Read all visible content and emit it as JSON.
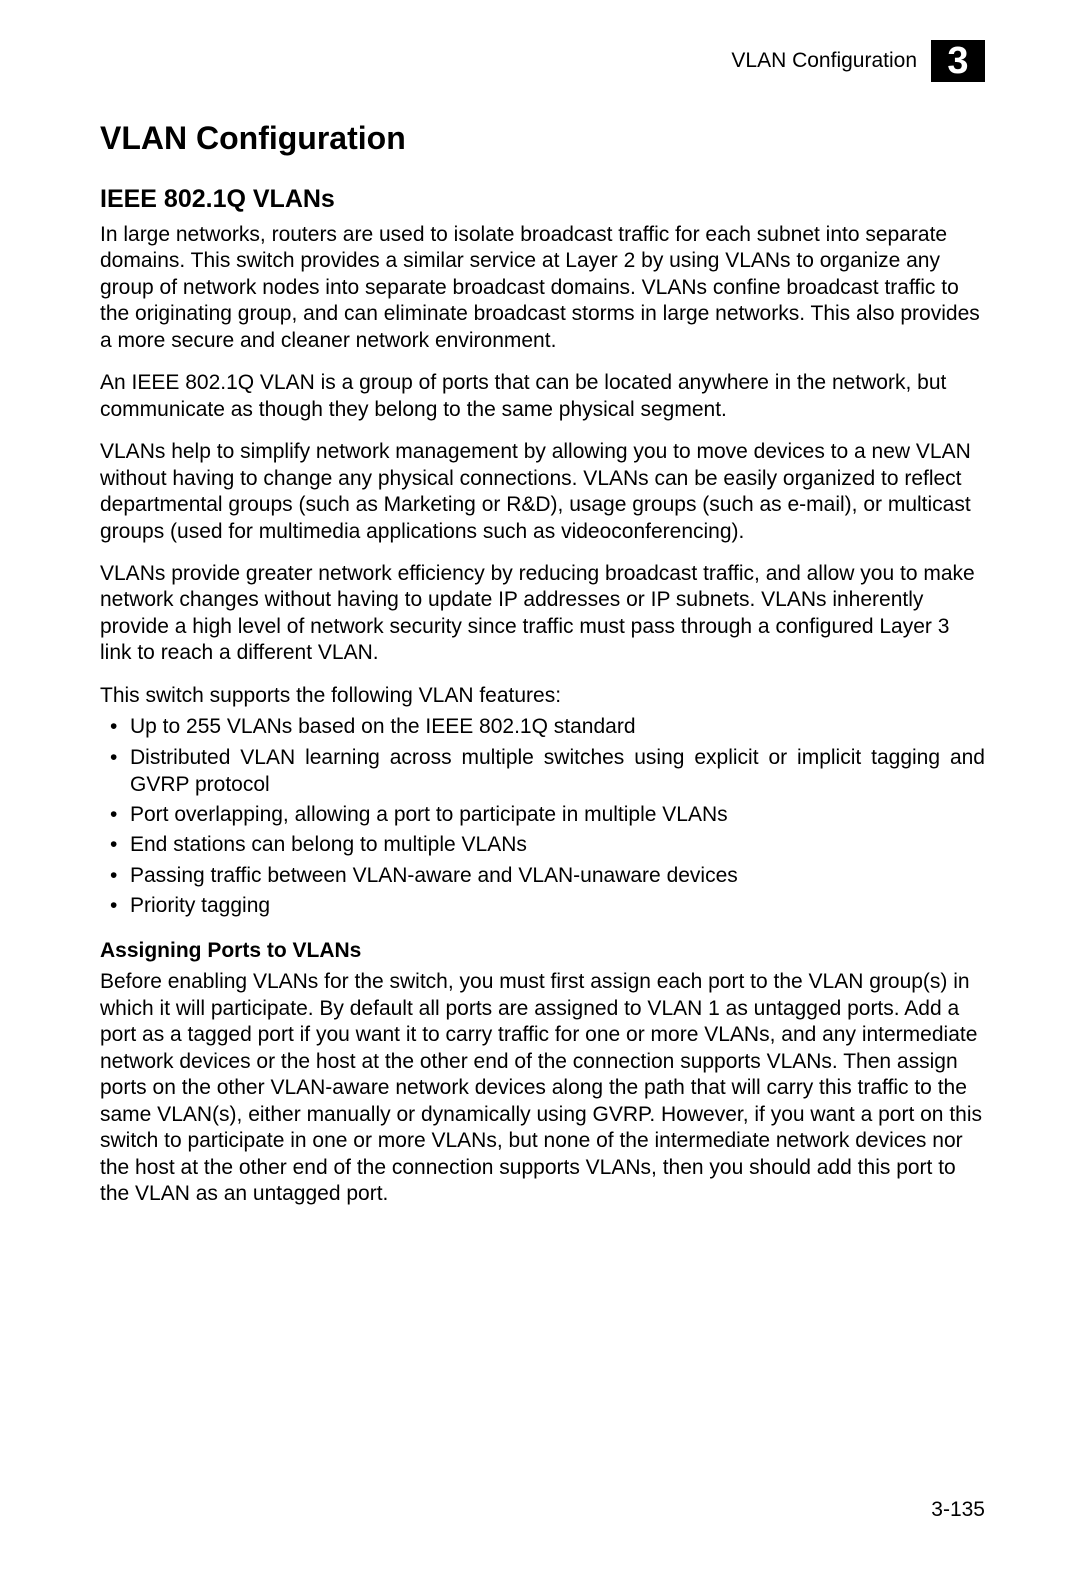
{
  "header": {
    "section_label": "VLAN Configuration",
    "chapter_number": "3"
  },
  "title": "VLAN Configuration",
  "subtitle": "IEEE 802.1Q VLANs",
  "paragraphs": {
    "p1": "In large networks, routers are used to isolate broadcast traffic for each subnet into separate domains. This switch provides a similar service at Layer 2 by using VLANs to organize any group of network nodes into separate broadcast domains. VLANs confine broadcast traffic to the originating group, and can eliminate broadcast storms in large networks. This also provides a more secure and cleaner network environment.",
    "p2": "An IEEE 802.1Q VLAN is a group of ports that can be located anywhere in the network, but communicate as though they belong to the same physical segment.",
    "p3": "VLANs help to simplify network management by allowing you to move devices to a new VLAN without having to change any physical connections. VLANs can be easily organized to reflect departmental groups (such as Marketing or R&D), usage groups (such as e-mail), or multicast groups (used for multimedia applications such as videoconferencing).",
    "p4": "VLANs provide greater network efficiency by reducing broadcast traffic, and allow you to make network changes without having to update IP addresses or IP subnets. VLANs inherently provide a high level of network security since traffic must pass through a configured Layer 3 link to reach a different VLAN.",
    "p5": "This switch supports the following VLAN features:"
  },
  "features": [
    "Up to 255 VLANs based on the IEEE 802.1Q standard",
    "Distributed VLAN learning across multiple switches using explicit or implicit tagging and GVRP protocol",
    "Port overlapping, allowing a port to participate in multiple VLANs",
    "End stations can belong to multiple VLANs",
    "Passing traffic between VLAN-aware and VLAN-unaware devices",
    "Priority tagging"
  ],
  "subsection": {
    "heading": "Assigning Ports to VLANs",
    "body": "Before enabling VLANs for the switch, you must first assign each port to the VLAN group(s) in which it will participate. By default all ports are assigned to VLAN 1 as untagged ports. Add a port as a tagged port if you want it to carry traffic for one or more VLANs, and any intermediate network devices or the host at the other end of the connection supports VLANs. Then assign ports on the other VLAN-aware network devices along the path that will carry this traffic to the same VLAN(s), either manually or dynamically using GVRP. However, if you want a port on this switch to participate in one or more VLANs, but none of the intermediate network devices nor the host at the other end of the connection supports VLANs, then you should add this port to the VLAN as an untagged port."
  },
  "page_number": "3-135"
}
